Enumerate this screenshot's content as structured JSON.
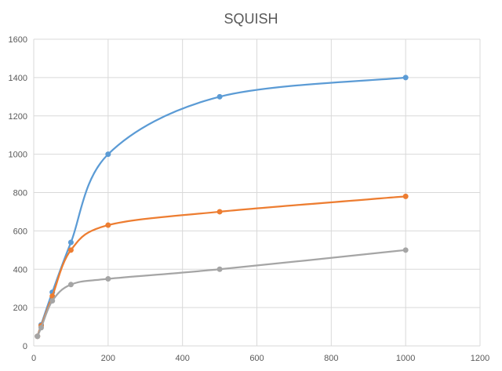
{
  "chart_data": {
    "type": "scatter",
    "title": "SQUISH",
    "xlabel": "",
    "ylabel": "",
    "xlim": [
      0,
      1200
    ],
    "ylim": [
      0,
      1600
    ],
    "x_ticks": [
      0,
      200,
      400,
      600,
      800,
      1000,
      1200
    ],
    "y_ticks": [
      0,
      200,
      400,
      600,
      800,
      1000,
      1200,
      1400,
      1600
    ],
    "grid": true,
    "legend": "none",
    "smooth": true,
    "series": [
      {
        "color": "#5b9bd5",
        "points": [
          [
            10,
            50
          ],
          [
            20,
            110
          ],
          [
            50,
            280
          ],
          [
            100,
            540
          ],
          [
            200,
            1000
          ],
          [
            500,
            1300
          ],
          [
            1000,
            1400
          ]
        ]
      },
      {
        "color": "#ed7d31",
        "points": [
          [
            10,
            50
          ],
          [
            20,
            105
          ],
          [
            50,
            260
          ],
          [
            100,
            500
          ],
          [
            200,
            630
          ],
          [
            500,
            700
          ],
          [
            1000,
            780
          ]
        ]
      },
      {
        "color": "#a5a5a5",
        "points": [
          [
            10,
            50
          ],
          [
            20,
            95
          ],
          [
            50,
            235
          ],
          [
            100,
            320
          ],
          [
            200,
            350
          ],
          [
            500,
            400
          ],
          [
            1000,
            500
          ]
        ]
      }
    ]
  }
}
